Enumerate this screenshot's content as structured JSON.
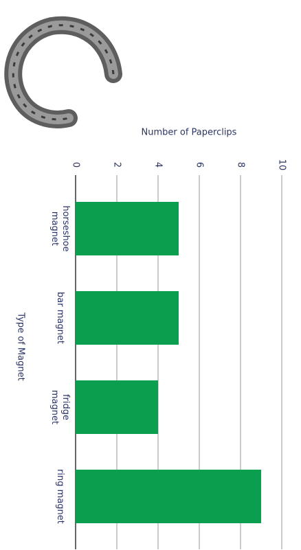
{
  "chart_data": {
    "type": "bar",
    "orientation": "horizontal",
    "x_label": "Number of Paperclips",
    "y_label": "Type of Magnet",
    "categories": [
      "horseshoe magnet",
      "bar magnet",
      "fridge magnet",
      "ring magnet"
    ],
    "values": [
      5,
      5,
      4,
      9
    ],
    "color": "#0a9e4f",
    "xlim": [
      0,
      10
    ],
    "xticks": [
      0,
      2,
      4,
      6,
      8,
      10
    ],
    "grid": true
  }
}
